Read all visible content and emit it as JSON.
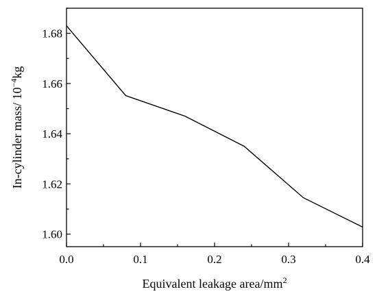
{
  "chart_data": {
    "type": "line",
    "title": "",
    "xlabel": {
      "text": "Equivalent leakage area/mm",
      "sup": "2"
    },
    "ylabel": {
      "pre": "In-cylinder mass/ 10",
      "sup": "−4",
      "post": "kg"
    },
    "xlim": [
      0.0,
      0.4
    ],
    "ylim": [
      1.595,
      1.69
    ],
    "x_ticks": [
      0.0,
      0.1,
      0.2,
      0.3,
      0.4
    ],
    "x_tick_labels": [
      "0.0",
      "0.1",
      "0.2",
      "0.3",
      "0.4"
    ],
    "y_ticks": [
      1.6,
      1.62,
      1.64,
      1.66,
      1.68
    ],
    "y_tick_labels": [
      "1.60",
      "1.62",
      "1.64",
      "1.66",
      "1.68"
    ],
    "grid": false,
    "series": [
      {
        "x": [
          0.0,
          0.08,
          0.16,
          0.24,
          0.32,
          0.4
        ],
        "y": [
          1.683,
          1.6552,
          1.647,
          1.635,
          1.6145,
          1.6028
        ],
        "color": "#000000"
      }
    ]
  }
}
